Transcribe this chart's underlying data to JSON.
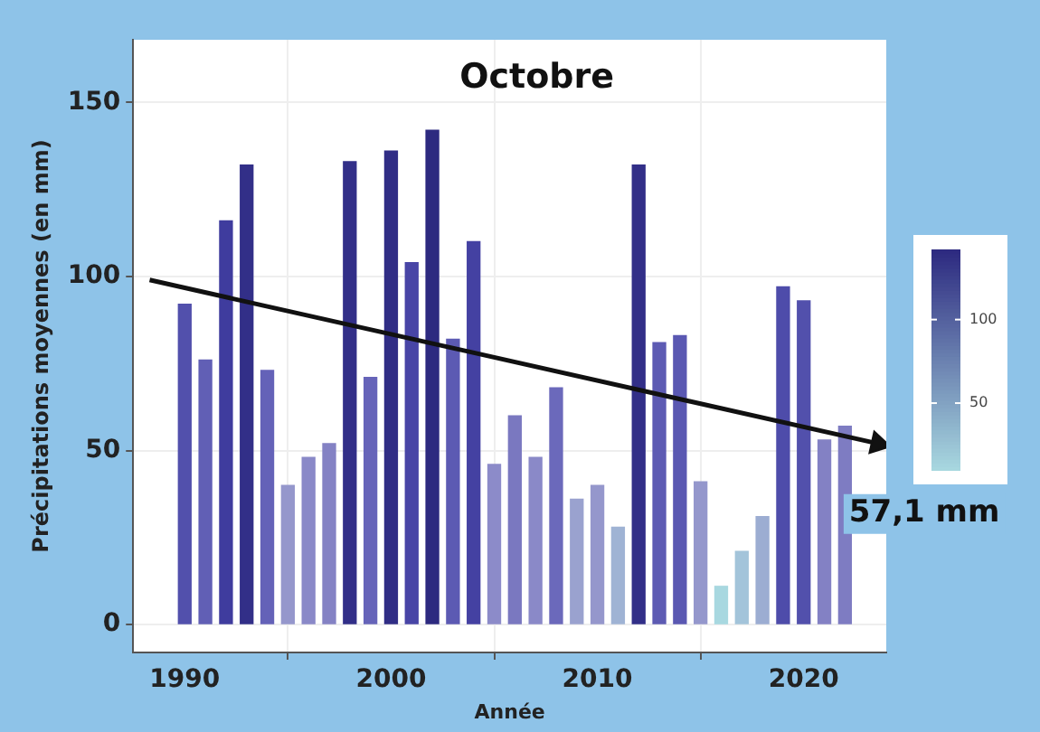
{
  "chart_data": {
    "type": "bar",
    "title": "Octobre",
    "xlabel": "Année",
    "ylabel": "Précipitations moyennes (en mm)",
    "x": [
      1990,
      1991,
      1992,
      1993,
      1994,
      1995,
      1996,
      1997,
      1998,
      1999,
      2000,
      2001,
      2002,
      2003,
      2004,
      2005,
      2006,
      2007,
      2008,
      2009,
      2010,
      2011,
      2012,
      2013,
      2014,
      2015,
      2016,
      2017,
      2018,
      2019,
      2020,
      2021,
      2022
    ],
    "series": [
      {
        "values": [
          92,
          76,
          116,
          132,
          73,
          40,
          48,
          52,
          133,
          71,
          136,
          104,
          142,
          82,
          110,
          46,
          60,
          48,
          68,
          36,
          40,
          28,
          132,
          81,
          83,
          41,
          11,
          21,
          31,
          97,
          93,
          53,
          57
        ],
        "colors": [
          "#5250ac",
          "#615fb5",
          "#3f3c9e",
          "#322f88",
          "#6462b8",
          "#9597cc",
          "#8a89c8",
          "#8482c4",
          "#322f88",
          "#6664b9",
          "#302d85",
          "#4845a6",
          "#2d2a80",
          "#5c5ab3",
          "#4441a2",
          "#8c8bc9",
          "#7a78c0",
          "#8a89c8",
          "#6b69bb",
          "#9aa2cf",
          "#9597cc",
          "#9fb3d4",
          "#322f88",
          "#5d5bb3",
          "#5a58b2",
          "#9497cc",
          "#a8d8e0",
          "#a3c4da",
          "#9cadd2",
          "#4e4caa",
          "#5250ac",
          "#8381c4",
          "#7e7cc2"
        ]
      },
      {
        "type": "line",
        "color": "#111111",
        "x": [
          1988.3,
          2023.6
        ],
        "values": [
          99,
          52
        ]
      }
    ],
    "annotations": [
      {
        "text": "57,1 mm",
        "x": 2023.6,
        "y": 52
      }
    ],
    "xlim": [
      1987.5,
      2024
    ],
    "xticks": [
      1990,
      2000,
      2010,
      2020
    ],
    "ylim": [
      -8,
      168
    ],
    "yticks": [
      0,
      50,
      100,
      150
    ],
    "clim": [
      10,
      142
    ],
    "cticks": [
      50,
      100
    ],
    "grid": true,
    "legend": false
  }
}
